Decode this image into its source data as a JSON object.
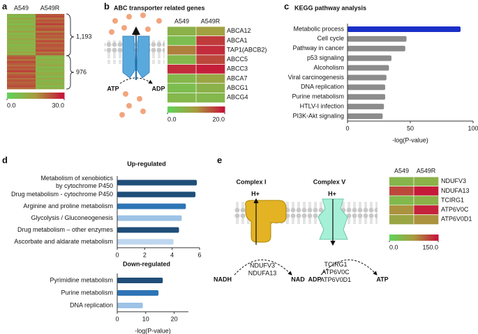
{
  "chart_data": [
    {
      "type": "heatmap",
      "panel": "a",
      "columns": [
        "A549",
        "A549R"
      ],
      "values": [
        [
          9,
          22
        ],
        [
          7,
          24
        ],
        [
          12,
          19
        ],
        [
          8,
          23
        ],
        [
          10,
          21
        ],
        [
          6,
          25
        ],
        [
          11,
          20
        ],
        [
          9,
          22
        ],
        [
          8,
          24
        ],
        [
          13,
          18
        ],
        [
          7,
          23
        ],
        [
          10,
          21
        ],
        [
          9,
          22
        ],
        [
          12,
          19
        ],
        [
          8,
          24
        ],
        [
          11,
          20
        ],
        [
          7,
          23
        ],
        [
          9,
          22
        ],
        [
          10,
          21
        ],
        [
          8,
          24
        ],
        [
          12,
          19
        ],
        [
          9,
          22
        ],
        [
          21,
          9
        ],
        [
          23,
          7
        ],
        [
          19,
          11
        ],
        [
          24,
          8
        ],
        [
          22,
          10
        ],
        [
          20,
          12
        ],
        [
          23,
          7
        ],
        [
          21,
          9
        ],
        [
          25,
          8
        ],
        [
          19,
          11
        ],
        [
          22,
          10
        ],
        [
          24,
          7
        ],
        [
          20,
          12
        ],
        [
          23,
          8
        ],
        [
          21,
          9
        ],
        [
          22,
          11
        ],
        [
          24,
          7
        ],
        [
          20,
          10
        ]
      ],
      "zlim": [
        0,
        30
      ],
      "zticks": [
        {
          "value": 0,
          "label": "0.0"
        },
        {
          "value": 30,
          "label": "30.0"
        }
      ],
      "colorscale": [
        "#5fd35a",
        "#a99b3e",
        "#c8103a"
      ],
      "annotations": [
        "1,193",
        "976"
      ]
    },
    {
      "type": "heatmap",
      "panel": "b",
      "title": "ABC transporter related genes",
      "columns": [
        "A549",
        "A549R"
      ],
      "rows": [
        "ABCA12",
        "ABCA1",
        "TAP1(ABCB2)",
        "ABCC5",
        "ABCC3",
        "ABCA7",
        "ABCG1",
        "ABCG4"
      ],
      "values": [
        [
          6,
          9
        ],
        [
          4,
          17
        ],
        [
          12,
          18
        ],
        [
          5,
          16
        ],
        [
          18,
          19
        ],
        [
          5,
          8
        ],
        [
          4,
          6
        ],
        [
          5,
          5
        ]
      ],
      "zlim": [
        0,
        20
      ],
      "zticks": [
        {
          "value": 0,
          "label": "0.0"
        },
        {
          "value": 20,
          "label": "20.0"
        }
      ],
      "colorscale": [
        "#5fd35a",
        "#a99b3e",
        "#c8103a"
      ]
    },
    {
      "type": "bar",
      "orientation": "horizontal",
      "panel": "c",
      "title": "KEGG pathway analysis",
      "categories": [
        "Metabolic process",
        "Cell cycle",
        "Pathway in cancer",
        "p53 signaling",
        "Alcoholism",
        "Viral carcinogenesis",
        "DNA replication",
        "Purine metabolism",
        "HTLV-I infection",
        "PI3K-Akt signaling"
      ],
      "values": [
        90,
        47,
        46,
        35,
        33,
        31,
        30,
        30,
        29,
        28
      ],
      "colors": [
        "#1a2fc8",
        "#8c8c8c",
        "#8c8c8c",
        "#8c8c8c",
        "#8c8c8c",
        "#8c8c8c",
        "#8c8c8c",
        "#8c8c8c",
        "#8c8c8c",
        "#8c8c8c"
      ],
      "xlim": [
        0,
        100
      ],
      "xticks": [
        0,
        50,
        100
      ],
      "xlabel": "-log(P-value)"
    },
    {
      "type": "bar",
      "orientation": "horizontal",
      "panel": "d",
      "title": "Up-regulated",
      "categories": [
        "Metabolism of xenobiotics\nby cytochrome P450",
        "Drug metabolism - cytochrome P450",
        "Arginine and proline metabolism",
        "Glycolysis / Gluconeogenesis",
        "Drug metabolism – other enzymes",
        "Ascorbate and aldarate metabolism"
      ],
      "values": [
        5.8,
        5.7,
        5.0,
        4.7,
        4.5,
        4.1
      ],
      "colors": [
        "#1f4e79",
        "#1f4e79",
        "#2e75b6",
        "#9dc3e6",
        "#1f4e79",
        "#bdd7ee"
      ],
      "xlim": [
        0,
        6
      ],
      "xticks": [
        0,
        2,
        4,
        6
      ]
    },
    {
      "type": "bar",
      "orientation": "horizontal",
      "title": "Down-regulated",
      "categories": [
        "Pyrimidine metabolism",
        "Purine metabolism",
        "DNA replication"
      ],
      "values": [
        16,
        14.5,
        9
      ],
      "colors": [
        "#1f4e79",
        "#2e75b6",
        "#9dc3e6"
      ],
      "xlim": [
        0,
        25
      ],
      "xticks": [
        0,
        10,
        20
      ],
      "xlabel": "-log(P-value)"
    },
    {
      "type": "heatmap",
      "panel": "e",
      "columns": [
        "A549",
        "A549R"
      ],
      "rows": [
        "NDUFV3",
        "NDUFA13",
        "TCIRG1",
        "ATP6V0C",
        "ATP6V0D1"
      ],
      "values": [
        [
          40,
          45
        ],
        [
          120,
          145
        ],
        [
          35,
          45
        ],
        [
          80,
          140
        ],
        [
          60,
          80
        ]
      ],
      "zlim": [
        0,
        150
      ],
      "zticks": [
        {
          "value": 0,
          "label": "0.0"
        },
        {
          "value": 150,
          "label": "150.0"
        }
      ],
      "colorscale": [
        "#5fd35a",
        "#a99b3e",
        "#c8103a"
      ]
    }
  ],
  "diagram": {
    "b": {
      "substrate": "ATP",
      "product": "ADP"
    },
    "e": {
      "complex_1": "Complex I",
      "complex_5": "Complex V",
      "proton_1": "H+",
      "proton_5": "H+",
      "genes_1": "NDUFV3\nNDUFA13",
      "genes_5": "TCIRG1\nATP6V0C\nATP6V0D1",
      "substrate_1": "NADH",
      "product_1": "NAD",
      "substrate_5": "ADP",
      "product_5": "ATP"
    }
  }
}
